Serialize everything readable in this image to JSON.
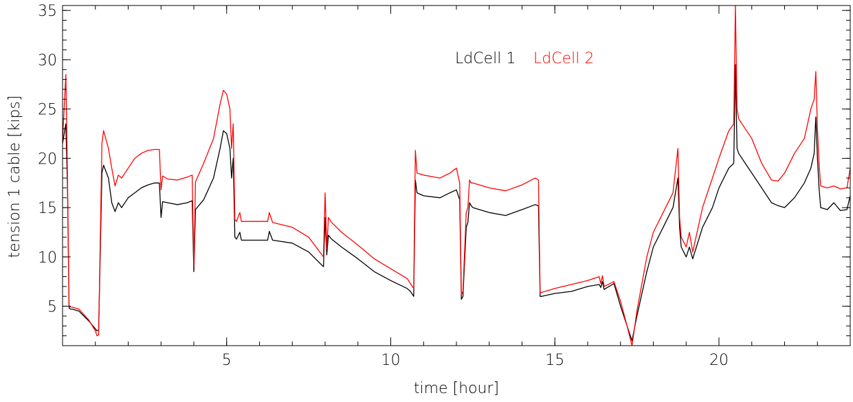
{
  "chart_data": {
    "type": "line",
    "xlabel": "time [hour]",
    "ylabel": "tension 1 cable [kips]",
    "xlim": [
      0,
      24
    ],
    "ylim": [
      1,
      35.5
    ],
    "x_ticks": [
      5,
      10,
      15,
      20
    ],
    "y_ticks": [
      5,
      10,
      15,
      20,
      25,
      30,
      35
    ],
    "x_minor_step": 1,
    "y_minor_step": 1,
    "grid": false,
    "legend_placement": "top-center",
    "series": [
      {
        "name": "LdCell 1",
        "color": "#000000",
        "x": [
          0,
          0.1,
          0.15,
          0.2,
          0.25,
          0.3,
          0.5,
          0.8,
          1.0,
          1.05,
          1.1,
          1.2,
          1.25,
          1.4,
          1.5,
          1.6,
          1.7,
          1.8,
          2.0,
          2.2,
          2.4,
          2.6,
          2.8,
          2.95,
          3.0,
          3.05,
          3.2,
          3.5,
          3.8,
          3.95,
          4.0,
          4.05,
          4.1,
          4.3,
          4.6,
          4.8,
          4.9,
          5.0,
          5.1,
          5.15,
          5.2,
          5.25,
          5.3,
          5.4,
          5.45,
          5.5,
          6.0,
          6.25,
          6.3,
          6.4,
          7.0,
          7.5,
          7.95,
          8.0,
          8.05,
          8.1,
          8.2,
          8.5,
          9.0,
          9.5,
          10.0,
          10.5,
          10.6,
          10.7,
          10.75,
          10.8,
          11.0,
          11.5,
          11.8,
          12.0,
          12.1,
          12.15,
          12.2,
          12.3,
          12.35,
          12.4,
          12.45,
          12.5,
          12.7,
          13.0,
          13.5,
          14.0,
          14.4,
          14.5,
          14.55,
          14.6,
          15.0,
          15.5,
          16.0,
          16.35,
          16.4,
          16.45,
          16.5,
          16.8,
          17.0,
          17.2,
          17.35,
          17.5,
          17.8,
          18.0,
          18.3,
          18.6,
          18.75,
          18.8,
          18.85,
          19.0,
          19.1,
          19.2,
          19.5,
          19.8,
          20.0,
          20.3,
          20.45,
          20.5,
          20.55,
          20.6,
          20.8,
          21.0,
          21.3,
          21.6,
          21.8,
          22.0,
          22.3,
          22.6,
          22.8,
          22.9,
          22.95,
          23.0,
          23.05,
          23.1,
          23.3,
          23.5,
          23.7,
          23.9,
          24.0
        ],
        "y": [
          21.5,
          23.5,
          17.0,
          4.8,
          4.7,
          4.7,
          4.5,
          3.5,
          2.7,
          2.5,
          2.6,
          18.5,
          19.3,
          18.0,
          15.5,
          14.6,
          15.5,
          15.0,
          16.0,
          16.5,
          17.0,
          17.3,
          17.5,
          17.5,
          14.0,
          15.6,
          15.5,
          15.3,
          15.5,
          15.7,
          8.5,
          14.8,
          15.0,
          15.8,
          18.0,
          21.0,
          22.8,
          22.5,
          21.0,
          18.0,
          20.0,
          12.0,
          11.8,
          12.5,
          11.7,
          11.7,
          11.7,
          11.7,
          12.6,
          11.7,
          11.4,
          10.5,
          9.0,
          14.0,
          10.2,
          12.2,
          11.8,
          11.0,
          9.8,
          8.5,
          7.6,
          6.8,
          6.5,
          6.0,
          17.8,
          16.5,
          16.2,
          16.0,
          16.5,
          16.8,
          15.8,
          5.7,
          6.0,
          13.0,
          13.5,
          15.5,
          15.2,
          15.0,
          14.8,
          14.5,
          14.2,
          14.8,
          15.3,
          15.2,
          6.0,
          6.0,
          6.3,
          6.5,
          7.0,
          7.2,
          6.9,
          7.5,
          6.7,
          7.3,
          5.0,
          3.0,
          1.5,
          4.0,
          8.5,
          11.0,
          13.0,
          15.0,
          18.0,
          13.0,
          11.0,
          10.0,
          11.0,
          9.8,
          13.0,
          15.0,
          17.0,
          19.0,
          19.5,
          29.5,
          21.0,
          20.5,
          19.5,
          18.5,
          17.0,
          15.5,
          15.2,
          15.0,
          16.0,
          17.5,
          19.0,
          20.5,
          24.2,
          20.0,
          17.0,
          15.0,
          14.8,
          15.5,
          14.7,
          14.8,
          16.2
        ]
      },
      {
        "name": "LdCell 2",
        "color": "#ff0000",
        "x": [
          0,
          0.1,
          0.15,
          0.2,
          0.25,
          0.3,
          0.5,
          0.8,
          1.0,
          1.05,
          1.1,
          1.2,
          1.25,
          1.4,
          1.5,
          1.6,
          1.7,
          1.8,
          2.0,
          2.2,
          2.4,
          2.6,
          2.8,
          2.95,
          3.0,
          3.05,
          3.2,
          3.5,
          3.8,
          3.95,
          4.0,
          4.05,
          4.1,
          4.3,
          4.6,
          4.8,
          4.9,
          5.0,
          5.1,
          5.15,
          5.2,
          5.25,
          5.3,
          5.4,
          5.45,
          5.5,
          6.0,
          6.25,
          6.3,
          6.4,
          7.0,
          7.5,
          7.95,
          8.0,
          8.05,
          8.1,
          8.2,
          8.5,
          9.0,
          9.5,
          10.0,
          10.5,
          10.6,
          10.7,
          10.75,
          10.8,
          11.0,
          11.5,
          11.8,
          12.0,
          12.1,
          12.15,
          12.2,
          12.3,
          12.35,
          12.4,
          12.45,
          12.5,
          12.7,
          13.0,
          13.5,
          14.0,
          14.4,
          14.5,
          14.55,
          14.6,
          15.0,
          15.5,
          16.0,
          16.35,
          16.4,
          16.45,
          16.5,
          16.8,
          17.0,
          17.2,
          17.35,
          17.5,
          17.8,
          18.0,
          18.3,
          18.6,
          18.75,
          18.8,
          18.85,
          19.0,
          19.1,
          19.2,
          19.5,
          19.8,
          20.0,
          20.3,
          20.45,
          20.5,
          20.55,
          20.6,
          20.8,
          21.0,
          21.3,
          21.6,
          21.8,
          22.0,
          22.3,
          22.6,
          22.8,
          22.9,
          22.95,
          23.0,
          23.05,
          23.1,
          23.3,
          23.5,
          23.7,
          23.9,
          24.0
        ],
        "y": [
          21.8,
          28.5,
          18.0,
          5.0,
          4.9,
          4.9,
          4.7,
          3.6,
          2.5,
          2.0,
          2.1,
          21.5,
          22.8,
          21.0,
          19.0,
          17.2,
          18.3,
          18.0,
          19.0,
          20.0,
          20.5,
          20.8,
          20.9,
          20.9,
          16.8,
          18.2,
          17.9,
          17.8,
          18.1,
          18.3,
          9.0,
          17.6,
          18.0,
          19.5,
          22.0,
          25.5,
          26.9,
          26.5,
          25.0,
          21.0,
          23.5,
          13.8,
          13.6,
          14.5,
          13.6,
          13.6,
          13.6,
          13.6,
          14.5,
          13.5,
          13.0,
          12.0,
          10.0,
          16.5,
          10.8,
          14.0,
          13.5,
          12.5,
          11.2,
          9.8,
          8.8,
          7.8,
          7.3,
          6.8,
          20.8,
          18.5,
          18.3,
          18.0,
          18.5,
          19.0,
          17.5,
          6.2,
          6.5,
          14.5,
          15.0,
          17.8,
          17.5,
          17.5,
          17.3,
          17.0,
          16.7,
          17.3,
          18.0,
          17.8,
          6.4,
          6.4,
          6.8,
          7.2,
          7.6,
          8.0,
          7.3,
          8.1,
          7.0,
          7.5,
          5.5,
          3.0,
          1.0,
          4.5,
          10.0,
          12.5,
          14.5,
          16.5,
          21.0,
          14.0,
          12.0,
          11.0,
          12.5,
          10.5,
          15.0,
          18.0,
          20.0,
          22.8,
          23.5,
          35.5,
          25.0,
          24.0,
          23.0,
          22.0,
          19.5,
          17.8,
          17.7,
          18.5,
          20.5,
          22.0,
          25.0,
          26.0,
          28.8,
          23.0,
          19.5,
          17.2,
          17.0,
          17.2,
          16.9,
          17.0,
          19.0
        ]
      }
    ]
  }
}
